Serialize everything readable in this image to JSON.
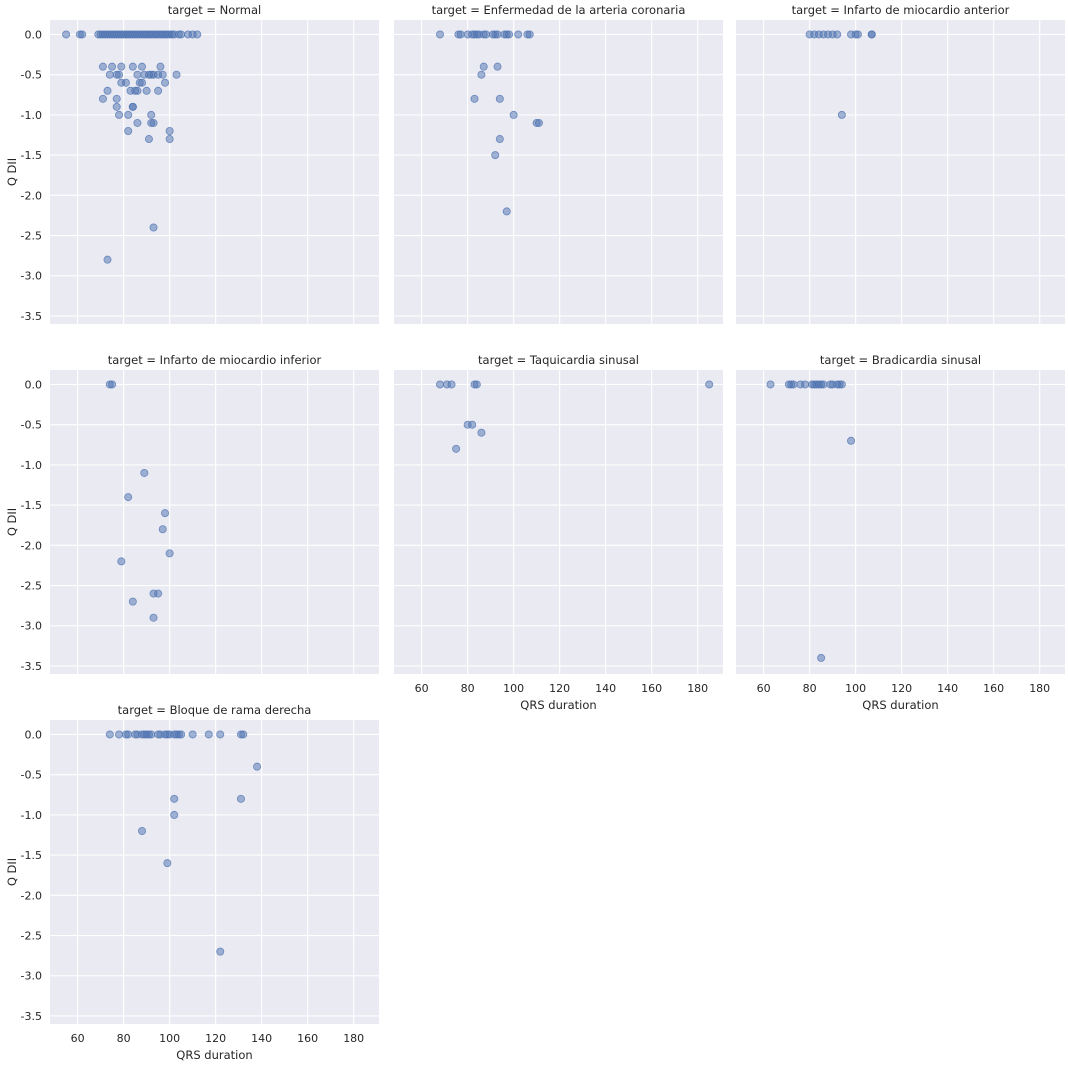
{
  "chart_data": {
    "type": "scatter",
    "xlabel": "QRS duration",
    "ylabel": "Q DII",
    "xlim": [
      48,
      191
    ],
    "ylim": [
      -3.6,
      0.18
    ],
    "xticks": [
      60,
      80,
      100,
      120,
      140,
      160,
      180
    ],
    "yticks": [
      0.0,
      -0.5,
      -1.0,
      -1.5,
      -2.0,
      -2.5,
      -3.0,
      -3.5
    ],
    "grid": true,
    "color": "#4c72b0",
    "panels": [
      {
        "title": "target = Normal",
        "points": [
          [
            55,
            0
          ],
          [
            61,
            0
          ],
          [
            62,
            0
          ],
          [
            69,
            0
          ],
          [
            70,
            0
          ],
          [
            71,
            0
          ],
          [
            72,
            0
          ],
          [
            73,
            0
          ],
          [
            74,
            0
          ],
          [
            75,
            0
          ],
          [
            76,
            0
          ],
          [
            77,
            0
          ],
          [
            78,
            0
          ],
          [
            79,
            0
          ],
          [
            80,
            0
          ],
          [
            81,
            0
          ],
          [
            82,
            0
          ],
          [
            83,
            0
          ],
          [
            84,
            0
          ],
          [
            85,
            0
          ],
          [
            86,
            0
          ],
          [
            87,
            0
          ],
          [
            88,
            0
          ],
          [
            89,
            0
          ],
          [
            90,
            0
          ],
          [
            91,
            0
          ],
          [
            92,
            0
          ],
          [
            93,
            0
          ],
          [
            94,
            0
          ],
          [
            95,
            0
          ],
          [
            96,
            0
          ],
          [
            97,
            0
          ],
          [
            98,
            0
          ],
          [
            99,
            0
          ],
          [
            100,
            0
          ],
          [
            101,
            0
          ],
          [
            102,
            0
          ],
          [
            104,
            0
          ],
          [
            105,
            0
          ],
          [
            108,
            0
          ],
          [
            110,
            0
          ],
          [
            112,
            0
          ],
          [
            71,
            -0.4
          ],
          [
            75,
            -0.4
          ],
          [
            79,
            -0.4
          ],
          [
            84,
            -0.4
          ],
          [
            88,
            -0.4
          ],
          [
            96,
            -0.4
          ],
          [
            74,
            -0.5
          ],
          [
            77,
            -0.5
          ],
          [
            78,
            -0.5
          ],
          [
            86,
            -0.5
          ],
          [
            89,
            -0.5
          ],
          [
            91,
            -0.5
          ],
          [
            92,
            -0.5
          ],
          [
            93,
            -0.5
          ],
          [
            95,
            -0.5
          ],
          [
            97,
            -0.5
          ],
          [
            103,
            -0.5
          ],
          [
            79,
            -0.6
          ],
          [
            81,
            -0.6
          ],
          [
            87,
            -0.6
          ],
          [
            88,
            -0.6
          ],
          [
            98,
            -0.6
          ],
          [
            73,
            -0.7
          ],
          [
            83,
            -0.7
          ],
          [
            85,
            -0.7
          ],
          [
            86,
            -0.7
          ],
          [
            90,
            -0.7
          ],
          [
            95,
            -0.7
          ],
          [
            71,
            -0.8
          ],
          [
            77,
            -0.8
          ],
          [
            77,
            -0.9
          ],
          [
            84,
            -0.9
          ],
          [
            84,
            -0.9
          ],
          [
            78,
            -1.0
          ],
          [
            82,
            -1.0
          ],
          [
            92,
            -1.0
          ],
          [
            86,
            -1.1
          ],
          [
            92,
            -1.1
          ],
          [
            93,
            -1.1
          ],
          [
            82,
            -1.2
          ],
          [
            100,
            -1.2
          ],
          [
            91,
            -1.3
          ],
          [
            100,
            -1.3
          ],
          [
            93,
            -2.4
          ],
          [
            73,
            -2.8
          ]
        ]
      },
      {
        "title": "target = Enfermedad de la arteria coronaria",
        "points": [
          [
            68,
            0
          ],
          [
            76,
            0
          ],
          [
            77,
            0
          ],
          [
            80,
            0
          ],
          [
            82,
            0
          ],
          [
            83,
            0
          ],
          [
            84,
            0
          ],
          [
            85,
            0
          ],
          [
            87,
            0
          ],
          [
            88,
            0
          ],
          [
            91,
            0
          ],
          [
            92,
            0
          ],
          [
            93,
            0
          ],
          [
            96,
            0
          ],
          [
            97,
            0
          ],
          [
            98,
            0
          ],
          [
            102,
            0
          ],
          [
            106,
            0
          ],
          [
            107,
            0
          ],
          [
            87,
            -0.4
          ],
          [
            93,
            -0.4
          ],
          [
            86,
            -0.5
          ],
          [
            83,
            -0.8
          ],
          [
            94,
            -0.8
          ],
          [
            100,
            -1.0
          ],
          [
            110,
            -1.1
          ],
          [
            111,
            -1.1
          ],
          [
            94,
            -1.3
          ],
          [
            92,
            -1.5
          ],
          [
            97,
            -2.2
          ]
        ]
      },
      {
        "title": "target = Infarto de miocardio anterior",
        "points": [
          [
            80,
            0
          ],
          [
            82,
            0
          ],
          [
            84,
            0
          ],
          [
            86,
            0
          ],
          [
            88,
            0
          ],
          [
            90,
            0
          ],
          [
            92,
            0
          ],
          [
            98,
            0
          ],
          [
            100,
            0
          ],
          [
            101,
            0
          ],
          [
            107,
            0
          ],
          [
            107,
            0
          ],
          [
            94,
            -1.0
          ]
        ]
      },
      {
        "title": "target = Infarto de miocardio inferior",
        "points": [
          [
            74,
            0
          ],
          [
            75,
            0
          ],
          [
            89,
            -1.1
          ],
          [
            82,
            -1.4
          ],
          [
            98,
            -1.6
          ],
          [
            97,
            -1.8
          ],
          [
            100,
            -2.1
          ],
          [
            79,
            -2.2
          ],
          [
            95,
            -2.6
          ],
          [
            93,
            -2.6
          ],
          [
            84,
            -2.7
          ],
          [
            93,
            -2.9
          ]
        ]
      },
      {
        "title": "target = Taquicardia sinusal",
        "points": [
          [
            68,
            0
          ],
          [
            71,
            0
          ],
          [
            73,
            0
          ],
          [
            83,
            0
          ],
          [
            84,
            0
          ],
          [
            185,
            0
          ],
          [
            80,
            -0.5
          ],
          [
            82,
            -0.5
          ],
          [
            86,
            -0.6
          ],
          [
            75,
            -0.8
          ]
        ]
      },
      {
        "title": "target = Bradicardia sinusal",
        "points": [
          [
            63,
            0
          ],
          [
            71,
            0
          ],
          [
            72,
            0
          ],
          [
            73,
            0
          ],
          [
            76,
            0
          ],
          [
            78,
            0
          ],
          [
            81,
            0
          ],
          [
            82,
            0
          ],
          [
            83,
            0
          ],
          [
            84,
            0
          ],
          [
            85,
            0
          ],
          [
            86,
            0
          ],
          [
            89,
            0
          ],
          [
            90,
            0
          ],
          [
            92,
            0
          ],
          [
            93,
            0
          ],
          [
            94,
            0
          ],
          [
            98,
            -0.7
          ],
          [
            85,
            -3.4
          ]
        ]
      },
      {
        "title": "target = Bloque de rama derecha",
        "points": [
          [
            74,
            0
          ],
          [
            78,
            0
          ],
          [
            81,
            0
          ],
          [
            82,
            0
          ],
          [
            85,
            0
          ],
          [
            86,
            0
          ],
          [
            88,
            0
          ],
          [
            89,
            0
          ],
          [
            90,
            0
          ],
          [
            91,
            0
          ],
          [
            92,
            0
          ],
          [
            95,
            0
          ],
          [
            96,
            0
          ],
          [
            98,
            0
          ],
          [
            99,
            0
          ],
          [
            100,
            0
          ],
          [
            102,
            0
          ],
          [
            103,
            0
          ],
          [
            104,
            0
          ],
          [
            105,
            0
          ],
          [
            110,
            0
          ],
          [
            117,
            0
          ],
          [
            122,
            0
          ],
          [
            131,
            0
          ],
          [
            132,
            0
          ],
          [
            138,
            -0.4
          ],
          [
            102,
            -0.8
          ],
          [
            131,
            -0.8
          ],
          [
            102,
            -1.0
          ],
          [
            88,
            -1.2
          ],
          [
            99,
            -1.6
          ],
          [
            122,
            -2.7
          ]
        ]
      }
    ]
  }
}
